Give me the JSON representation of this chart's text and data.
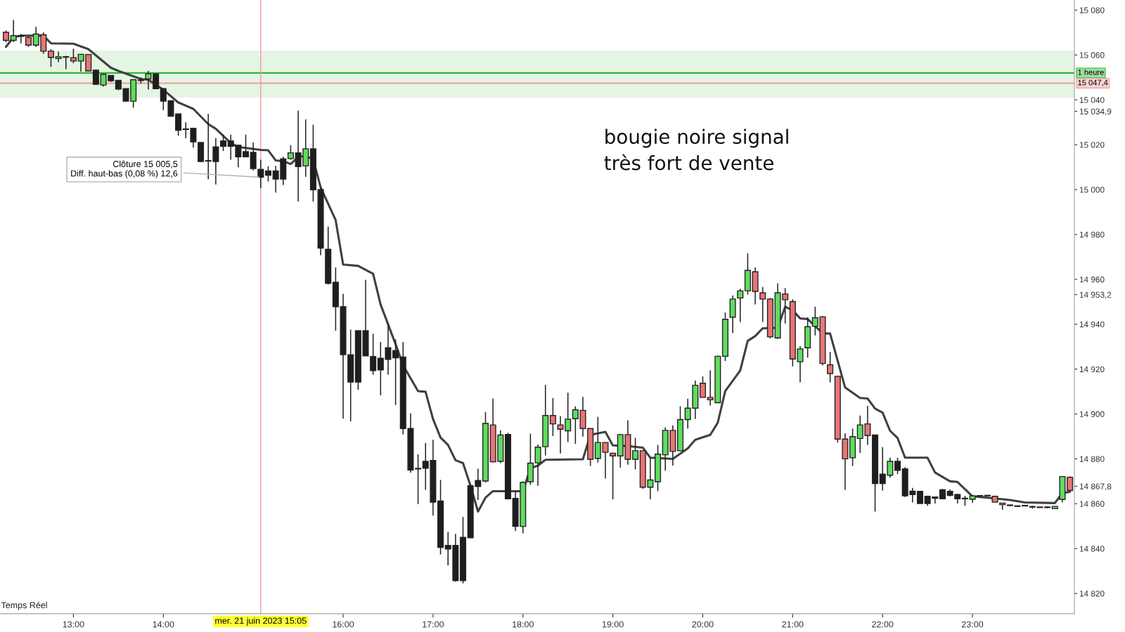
{
  "chart_data": {
    "type": "candlestick",
    "x": [
      "2023-06-21T12:15",
      "2023-06-21T12:20",
      "2023-06-21T12:25",
      "2023-06-21T12:30",
      "2023-06-21T12:35",
      "2023-06-21T12:40",
      "2023-06-21T12:45",
      "2023-06-21T12:50",
      "2023-06-21T12:55",
      "2023-06-21T13:00",
      "2023-06-21T13:05",
      "2023-06-21T13:10",
      "2023-06-21T13:15",
      "2023-06-21T13:20",
      "2023-06-21T13:25",
      "2023-06-21T13:30",
      "2023-06-21T13:35",
      "2023-06-21T13:40",
      "2023-06-21T13:45",
      "2023-06-21T13:50",
      "2023-06-21T13:55",
      "2023-06-21T14:00",
      "2023-06-21T14:05",
      "2023-06-21T14:10",
      "2023-06-21T14:15",
      "2023-06-21T14:20",
      "2023-06-21T14:25",
      "2023-06-21T14:30",
      "2023-06-21T14:35",
      "2023-06-21T14:40",
      "2023-06-21T14:45",
      "2023-06-21T14:50",
      "2023-06-21T14:55",
      "2023-06-21T15:00",
      "2023-06-21T15:05",
      "2023-06-21T15:10",
      "2023-06-21T15:15",
      "2023-06-21T15:20",
      "2023-06-21T15:25",
      "2023-06-21T15:30",
      "2023-06-21T15:35",
      "2023-06-21T15:40",
      "2023-06-21T15:45",
      "2023-06-21T15:50",
      "2023-06-21T15:55",
      "2023-06-21T16:00",
      "2023-06-21T16:05",
      "2023-06-21T16:10",
      "2023-06-21T16:15",
      "2023-06-21T16:20",
      "2023-06-21T16:25",
      "2023-06-21T16:30",
      "2023-06-21T16:35",
      "2023-06-21T16:40",
      "2023-06-21T16:45",
      "2023-06-21T16:50",
      "2023-06-21T16:55",
      "2023-06-21T17:00",
      "2023-06-21T17:05",
      "2023-06-21T17:10",
      "2023-06-21T17:15",
      "2023-06-21T17:20",
      "2023-06-21T17:25",
      "2023-06-21T17:30",
      "2023-06-21T17:35",
      "2023-06-21T17:40",
      "2023-06-21T17:45",
      "2023-06-21T17:50",
      "2023-06-21T17:55",
      "2023-06-21T18:00",
      "2023-06-21T18:05",
      "2023-06-21T18:10",
      "2023-06-21T18:15",
      "2023-06-21T18:20",
      "2023-06-21T18:25",
      "2023-06-21T18:30",
      "2023-06-21T18:35",
      "2023-06-21T18:40",
      "2023-06-21T18:45",
      "2023-06-21T18:50",
      "2023-06-21T18:55",
      "2023-06-21T19:00",
      "2023-06-21T19:05",
      "2023-06-21T19:10",
      "2023-06-21T19:15",
      "2023-06-21T19:20",
      "2023-06-21T19:25",
      "2023-06-21T19:30",
      "2023-06-21T19:35",
      "2023-06-21T19:40",
      "2023-06-21T19:45",
      "2023-06-21T19:50",
      "2023-06-21T19:55",
      "2023-06-21T20:00",
      "2023-06-21T20:05",
      "2023-06-21T20:10",
      "2023-06-21T20:15",
      "2023-06-21T20:20",
      "2023-06-21T20:25",
      "2023-06-21T20:30",
      "2023-06-21T20:35",
      "2023-06-21T20:40",
      "2023-06-21T20:45",
      "2023-06-21T20:50",
      "2023-06-21T20:55",
      "2023-06-21T21:00",
      "2023-06-21T21:05",
      "2023-06-21T21:10",
      "2023-06-21T21:15",
      "2023-06-21T21:20",
      "2023-06-21T21:25",
      "2023-06-21T21:30",
      "2023-06-21T21:35",
      "2023-06-21T21:40",
      "2023-06-21T21:45",
      "2023-06-21T21:50",
      "2023-06-21T21:55",
      "2023-06-21T22:00",
      "2023-06-21T22:05",
      "2023-06-21T22:10",
      "2023-06-21T22:15",
      "2023-06-21T22:20",
      "2023-06-21T22:25",
      "2023-06-21T22:30",
      "2023-06-21T22:35",
      "2023-06-21T22:40",
      "2023-06-21T22:45",
      "2023-06-21T22:50",
      "2023-06-21T22:55",
      "2023-06-21T23:00",
      "2023-06-21T23:05",
      "2023-06-21T23:10",
      "2023-06-21T23:15",
      "2023-06-21T23:20",
      "2023-06-21T23:25",
      "2023-06-21T23:30",
      "2023-06-21T23:35",
      "2023-06-21T23:40",
      "2023-06-21T23:45",
      "2023-06-21T23:50",
      "2023-06-21T23:55",
      "2023-06-22T00:00",
      "2023-06-22T00:05"
    ],
    "ohlc": [
      [
        15070.1,
        15070.9,
        15065.7,
        15066.5
      ],
      [
        15066.5,
        15075.6,
        15065.7,
        15068.6
      ],
      [
        15068.4,
        15069.3,
        15065.2,
        15068.3
      ],
      [
        15067.8,
        15068.3,
        15063.6,
        15064.4
      ],
      [
        15064.4,
        15072.5,
        15063.6,
        15069.3
      ],
      [
        15069.0,
        15070.1,
        15060.5,
        15061.7
      ],
      [
        15061.7,
        15062.6,
        15054.7,
        15058.9
      ],
      [
        15058.4,
        15061.5,
        15056.8,
        15059.2
      ],
      [
        15059.2,
        15059.6,
        15053.7,
        15059.0
      ],
      [
        15058.8,
        15062.8,
        15056.3,
        15057.3
      ],
      [
        15057.3,
        15060.5,
        15052.6,
        15060.3
      ],
      [
        15060.2,
        15060.4,
        15052.8,
        15052.9
      ],
      [
        15053.2,
        15053.6,
        15046.8,
        15046.9
      ],
      [
        15046.6,
        15051.5,
        15045.9,
        15051.4
      ],
      [
        15050.9,
        15051.0,
        15048.0,
        15048.5
      ],
      [
        15048.7,
        15048.8,
        15044.3,
        15044.8
      ],
      [
        15045.0,
        15045.1,
        15039.3,
        15039.4
      ],
      [
        15039.4,
        15049.1,
        15036.5,
        15049.0
      ],
      [
        15048.8,
        15050.0,
        15047.3,
        15048.6
      ],
      [
        15049.3,
        15052.9,
        15044.6,
        15051.6
      ],
      [
        15051.6,
        15051.7,
        15044.8,
        15045.0
      ],
      [
        15045.0,
        15045.1,
        15035.4,
        15039.4
      ],
      [
        15039.6,
        15039.7,
        15032.6,
        15032.7
      ],
      [
        15033.7,
        15033.8,
        15024.0,
        15026.4
      ],
      [
        15026.9,
        15030.0,
        15022.9,
        15026.8
      ],
      [
        15027.3,
        15027.4,
        15018.7,
        15021.3
      ],
      [
        15021.0,
        15021.1,
        15012.4,
        15012.5
      ],
      [
        15012.9,
        15033.7,
        15004.6,
        15012.7
      ],
      [
        15019.0,
        15023.0,
        15002.3,
        15012.5
      ],
      [
        15021.7,
        15024.5,
        15017.2,
        15019.3
      ],
      [
        15021.7,
        15024.5,
        15013.3,
        15019.3
      ],
      [
        15019.8,
        15020.0,
        15009.9,
        15014.6
      ],
      [
        15016.9,
        15024.5,
        15014.4,
        15014.6
      ],
      [
        15016.6,
        15021.0,
        15008.5,
        15009.4
      ],
      [
        15009.0,
        15013.3,
        15000.7,
        15005.5
      ],
      [
        15008.3,
        15010.4,
        15003.6,
        15006.4
      ],
      [
        15008.3,
        15010.6,
        14998.7,
        15004.7
      ],
      [
        15013.7,
        15014.6,
        15002.0,
        15004.7
      ],
      [
        15013.8,
        15019.8,
        15013.3,
        15016.4
      ],
      [
        15016.4,
        15035.2,
        14994.7,
        15010.2
      ],
      [
        15010.6,
        15031.3,
        15005.7,
        15018.2
      ],
      [
        15018.2,
        15028.9,
        14994.7,
        14999.9
      ],
      [
        15000.0,
        15001.0,
        14970.7,
        14973.9
      ],
      [
        14973.4,
        14983.5,
        14957.7,
        14958.2
      ],
      [
        14958.7,
        14965.3,
        14937.1,
        14947.8
      ],
      [
        14947.8,
        14953.5,
        14897.9,
        14926.4
      ],
      [
        14926.4,
        14937.6,
        14896.7,
        14914.2
      ],
      [
        14937.1,
        14937.2,
        14910.8,
        14914.2
      ],
      [
        14937.1,
        14959.8,
        14925.8,
        14925.9
      ],
      [
        14925.6,
        14935.8,
        14917.5,
        14919.3
      ],
      [
        14924.8,
        14932.1,
        14908.3,
        14919.6
      ],
      [
        14929.5,
        14940.0,
        14917.5,
        14924.3
      ],
      [
        14928.3,
        14933.2,
        14904.0,
        14925.0
      ],
      [
        14925.4,
        14932.1,
        14890.9,
        14893.5
      ],
      [
        14893.5,
        14900.3,
        14873.9,
        14875.0
      ],
      [
        14875.7,
        14882.0,
        14859.8,
        14875.5
      ],
      [
        14878.9,
        14887.1,
        14866.2,
        14875.8
      ],
      [
        14879.3,
        14888.5,
        14854.7,
        14860.7
      ],
      [
        14861.2,
        14870.6,
        14837.4,
        14840.5
      ],
      [
        14841.4,
        14847.4,
        14832.5,
        14839.8
      ],
      [
        14841.4,
        14846.6,
        14825.2,
        14825.7
      ],
      [
        14845.0,
        14854.1,
        14824.5,
        14825.7
      ],
      [
        14868.0,
        14868.7,
        14844.7,
        14844.8
      ],
      [
        14870.4,
        14875.6,
        14861.7,
        14867.7
      ],
      [
        14870.1,
        14900.8,
        14869.5,
        14895.8
      ],
      [
        14895.1,
        14906.9,
        14878.4,
        14878.7
      ],
      [
        14878.9,
        14892.7,
        14878.1,
        14890.6
      ],
      [
        14890.9,
        14891.6,
        14862.1,
        14862.2
      ],
      [
        14862.4,
        14865.4,
        14847.8,
        14849.9
      ],
      [
        14849.9,
        14870.0,
        14846.8,
        14869.5
      ],
      [
        14869.8,
        14891.2,
        14868.5,
        14878.1
      ],
      [
        14878.2,
        14886.4,
        14868.0,
        14885.2
      ],
      [
        14885.4,
        14913.0,
        14881.5,
        14899.3
      ],
      [
        14899.3,
        14907.1,
        14890.2,
        14895.6
      ],
      [
        14895.1,
        14899.1,
        14882.4,
        14893.2
      ],
      [
        14892.5,
        14909.5,
        14887.5,
        14897.7
      ],
      [
        14897.9,
        14903.4,
        14886.7,
        14901.9
      ],
      [
        14901.6,
        14907.6,
        14889.9,
        14893.5
      ],
      [
        14893.5,
        14893.6,
        14876.8,
        14879.8
      ],
      [
        14880.2,
        14898.7,
        14878.4,
        14887.3
      ],
      [
        14887.3,
        14887.4,
        14871.2,
        14882.9
      ],
      [
        14882.5,
        14882.6,
        14862.0,
        14881.3
      ],
      [
        14881.3,
        14890.9,
        14876.1,
        14890.8
      ],
      [
        14890.8,
        14897.2,
        14877.4,
        14879.8
      ],
      [
        14879.8,
        14889.4,
        14875.3,
        14883.6
      ],
      [
        14883.6,
        14883.7,
        14866.6,
        14867.4
      ],
      [
        14867.4,
        14880.5,
        14862.0,
        14870.6
      ],
      [
        14869.8,
        14886.2,
        14865.6,
        14882.1
      ],
      [
        14881.8,
        14894.1,
        14874.7,
        14892.7
      ],
      [
        14892.7,
        14894.9,
        14877.0,
        14883.3
      ],
      [
        14883.6,
        14903.4,
        14883.5,
        14897.5
      ],
      [
        14897.5,
        14906.8,
        14893.5,
        14902.6
      ],
      [
        14902.6,
        14914.9,
        14897.7,
        14912.8
      ],
      [
        14913.7,
        14916.7,
        14907.3,
        14907.4
      ],
      [
        14907.4,
        14919.4,
        14903.8,
        14906.3
      ],
      [
        14905.0,
        14926.0,
        14904.9,
        14925.7
      ],
      [
        14925.7,
        14945.2,
        14923.6,
        14942.2
      ],
      [
        14943.1,
        14952.8,
        14936.1,
        14951.2
      ],
      [
        14951.7,
        14955.8,
        14941.0,
        14954.9
      ],
      [
        14954.9,
        14971.6,
        14953.2,
        14964.0
      ],
      [
        14963.4,
        14965.3,
        14948.8,
        14954.6
      ],
      [
        14954.0,
        14956.6,
        14941.0,
        14951.2
      ],
      [
        14951.2,
        14951.7,
        14933.7,
        14934.4
      ],
      [
        14933.9,
        14958.2,
        14933.4,
        14954.0
      ],
      [
        14953.5,
        14956.1,
        14940.3,
        14950.9
      ],
      [
        14950.1,
        14951.1,
        14921.2,
        14924.5
      ],
      [
        14923.3,
        14930.2,
        14914.1,
        14929.0
      ],
      [
        14929.5,
        14943.1,
        14925.1,
        14938.9
      ],
      [
        14939.1,
        14947.8,
        14935.0,
        14942.9
      ],
      [
        14943.3,
        14943.6,
        14921.7,
        14922.5
      ],
      [
        14921.9,
        14927.7,
        14914.1,
        14918.0
      ],
      [
        14916.8,
        14917.0,
        14887.3,
        14888.8
      ],
      [
        14888.8,
        14891.4,
        14866.2,
        14880.0
      ],
      [
        14880.5,
        14893.5,
        14876.8,
        14889.9
      ],
      [
        14889.1,
        14899.3,
        14882.6,
        14895.1
      ],
      [
        14895.6,
        14903.6,
        14886.2,
        14890.4
      ],
      [
        14890.6,
        14890.7,
        14856.5,
        14869.0
      ],
      [
        14873.2,
        14885.2,
        14865.9,
        14869.0
      ],
      [
        14872.7,
        14880.5,
        14871.6,
        14878.9
      ],
      [
        14878.9,
        14880.5,
        14873.2,
        14874.9
      ],
      [
        14875.5,
        14876.3,
        14863.0,
        14863.5
      ],
      [
        14865.6,
        14867.1,
        14860.6,
        14864.1
      ],
      [
        14865.5,
        14865.6,
        14860.0,
        14860.1
      ],
      [
        14863.3,
        14863.5,
        14859.1,
        14860.1
      ],
      [
        14863.0,
        14863.2,
        14860.1,
        14862.4
      ],
      [
        14866.2,
        14866.6,
        14862.0,
        14862.2
      ],
      [
        14865.5,
        14866.4,
        14863.2,
        14863.8
      ],
      [
        14864.1,
        14864.5,
        14860.1,
        14862.2
      ],
      [
        14862.3,
        14863.5,
        14859.1,
        14862.2
      ],
      [
        14862.0,
        14863.8,
        14860.3,
        14863.5
      ],
      [
        14863.5,
        14863.7,
        14863.3,
        14863.4
      ],
      [
        14863.6,
        14863.8,
        14863.3,
        14863.5
      ],
      [
        14863.3,
        14863.4,
        14860.6,
        14860.7
      ],
      [
        14860.3,
        14860.4,
        14857.3,
        14859.6
      ],
      [
        14859.3,
        14859.6,
        14858.9,
        14859.2
      ],
      [
        14858.9,
        14859.0,
        14858.7,
        14858.8
      ],
      [
        14859.1,
        14859.3,
        14858.8,
        14859.0
      ],
      [
        14858.6,
        14859.1,
        14857.8,
        14858.5
      ],
      [
        14858.4,
        14858.5,
        14858.2,
        14858.3
      ],
      [
        14858.4,
        14858.8,
        14858.0,
        14858.3
      ],
      [
        14857.8,
        14858.9,
        14857.7,
        14858.8
      ],
      [
        14861.9,
        14872.2,
        14860.6,
        14872.1
      ],
      [
        14871.8,
        14872.2,
        14865.8,
        14865.9
      ]
    ],
    "colors": [
      "#e87575",
      "#5fdc5f",
      "#1e1e1e",
      "#e87575",
      "#5fdc5f",
      "#e87575",
      "#e87575",
      "#5fdc5f",
      "#1e1e1e",
      "#e87575",
      "#5fdc5f",
      "#e87575",
      "#1e1e1e",
      "#5fdc5f",
      "#1e1e1e",
      "#1e1e1e",
      "#1e1e1e",
      "#5fdc5f",
      "#1e1e1e",
      "#5fdc5f",
      "#1e1e1e",
      "#1e1e1e",
      "#1e1e1e",
      "#1e1e1e",
      "#1e1e1e",
      "#1e1e1e",
      "#1e1e1e",
      "#1e1e1e",
      "#1e1e1e",
      "#1e1e1e",
      "#1e1e1e",
      "#1e1e1e",
      "#1e1e1e",
      "#1e1e1e",
      "#1e1e1e",
      "#1e1e1e",
      "#1e1e1e",
      "#1e1e1e",
      "#5fdc5f",
      "#1e1e1e",
      "#5fdc5f",
      "#1e1e1e",
      "#1e1e1e",
      "#1e1e1e",
      "#1e1e1e",
      "#1e1e1e",
      "#1e1e1e",
      "#1e1e1e",
      "#1e1e1e",
      "#1e1e1e",
      "#1e1e1e",
      "#1e1e1e",
      "#1e1e1e",
      "#1e1e1e",
      "#1e1e1e",
      "#1e1e1e",
      "#1e1e1e",
      "#1e1e1e",
      "#1e1e1e",
      "#1e1e1e",
      "#1e1e1e",
      "#1e1e1e",
      "#1e1e1e",
      "#1e1e1e",
      "#5fdc5f",
      "#e87575",
      "#5fdc5f",
      "#1e1e1e",
      "#1e1e1e",
      "#5fdc5f",
      "#5fdc5f",
      "#5fdc5f",
      "#5fdc5f",
      "#e87575",
      "#e87575",
      "#5fdc5f",
      "#5fdc5f",
      "#e87575",
      "#e87575",
      "#5fdc5f",
      "#e87575",
      "#e87575",
      "#5fdc5f",
      "#e87575",
      "#5fdc5f",
      "#e87575",
      "#5fdc5f",
      "#5fdc5f",
      "#5fdc5f",
      "#e87575",
      "#5fdc5f",
      "#5fdc5f",
      "#5fdc5f",
      "#e87575",
      "#e87575",
      "#5fdc5f",
      "#5fdc5f",
      "#5fdc5f",
      "#5fdc5f",
      "#5fdc5f",
      "#e87575",
      "#e87575",
      "#e87575",
      "#5fdc5f",
      "#e87575",
      "#e87575",
      "#5fdc5f",
      "#5fdc5f",
      "#5fdc5f",
      "#e87575",
      "#e87575",
      "#e87575",
      "#e87575",
      "#5fdc5f",
      "#5fdc5f",
      "#e87575",
      "#1e1e1e",
      "#1e1e1e",
      "#5fdc5f",
      "#1e1e1e",
      "#1e1e1e",
      "#1e1e1e",
      "#1e1e1e",
      "#1e1e1e",
      "#1e1e1e",
      "#1e1e1e",
      "#1e1e1e",
      "#1e1e1e",
      "#1e1e1e",
      "#5fdc5f",
      "#1e1e1e",
      "#1e1e1e",
      "#e87575",
      "#e87575",
      "#1e1e1e",
      "#1e1e1e",
      "#1e1e1e",
      "#1e1e1e",
      "#1e1e1e",
      "#1e1e1e",
      "#5fdc5f",
      "#5fdc5f",
      "#e87575"
    ],
    "series": [
      {
        "type": "line",
        "color": "#404040",
        "x": [
          "2023-06-21T12:15",
          "2023-06-21T12:20",
          "2023-06-21T12:25",
          "2023-06-21T12:40",
          "2023-06-21T12:45",
          "2023-06-21T13:00",
          "2023-06-21T13:10",
          "2023-06-21T13:25",
          "2023-06-21T13:30",
          "2023-06-21T13:45",
          "2023-06-21T13:50",
          "2023-06-21T14:00",
          "2023-06-21T14:10",
          "2023-06-21T14:20",
          "2023-06-21T14:30",
          "2023-06-21T14:35",
          "2023-06-21T14:45",
          "2023-06-21T14:50",
          "2023-06-21T15:05",
          "2023-06-21T15:10",
          "2023-06-21T15:15",
          "2023-06-21T15:20",
          "2023-06-21T15:25",
          "2023-06-21T15:30",
          "2023-06-21T15:35",
          "2023-06-21T15:40",
          "2023-06-21T15:45",
          "2023-06-21T15:55",
          "2023-06-21T16:00",
          "2023-06-21T16:10",
          "2023-06-21T16:20",
          "2023-06-21T16:25",
          "2023-06-21T16:35",
          "2023-06-21T16:40",
          "2023-06-21T16:50",
          "2023-06-21T16:55",
          "2023-06-21T17:00",
          "2023-06-21T17:05",
          "2023-06-21T17:10",
          "2023-06-21T17:15",
          "2023-06-21T17:20",
          "2023-06-21T17:25",
          "2023-06-21T17:30",
          "2023-06-21T17:35",
          "2023-06-21T17:40",
          "2023-06-21T18:00",
          "2023-06-21T18:05",
          "2023-06-21T18:10",
          "2023-06-21T18:15",
          "2023-06-21T18:40",
          "2023-06-21T18:45",
          "2023-06-21T18:55",
          "2023-06-21T19:00",
          "2023-06-21T19:10",
          "2023-06-21T19:20",
          "2023-06-21T19:25",
          "2023-06-21T19:40",
          "2023-06-21T19:50",
          "2023-06-21T19:55",
          "2023-06-21T20:05",
          "2023-06-21T20:10",
          "2023-06-21T20:15",
          "2023-06-21T20:25",
          "2023-06-21T20:30",
          "2023-06-21T20:35",
          "2023-06-21T20:40",
          "2023-06-21T20:50",
          "2023-06-21T20:55",
          "2023-06-21T21:00",
          "2023-06-21T21:05",
          "2023-06-21T21:10",
          "2023-06-21T21:20",
          "2023-06-21T21:25",
          "2023-06-21T21:35",
          "2023-06-21T21:45",
          "2023-06-21T21:50",
          "2023-06-21T21:55",
          "2023-06-21T22:00",
          "2023-06-21T22:05",
          "2023-06-21T22:10",
          "2023-06-21T22:15",
          "2023-06-21T22:30",
          "2023-06-21T22:35",
          "2023-06-21T22:45",
          "2023-06-21T22:50",
          "2023-06-21T23:00",
          "2023-06-21T23:10",
          "2023-06-21T23:25",
          "2023-06-21T23:35",
          "2023-06-21T23:55",
          "2023-06-22T00:00",
          "2023-06-22T00:05"
        ],
        "values": [
          15063.6,
          15068.0,
          15068.6,
          15068.6,
          15065.2,
          15065.0,
          15062.6,
          15054.3,
          15052.9,
          15049.3,
          15049.0,
          15044.5,
          15038.8,
          15036.0,
          15029.2,
          15027.1,
          15020.8,
          15019.0,
          15017.7,
          15017.5,
          15013.0,
          15012.7,
          15011.4,
          15014.6,
          15015.0,
          15013.5,
          15001.0,
          14986.4,
          14966.6,
          14966.0,
          14962.5,
          14948.8,
          14931.1,
          14921.7,
          14910.2,
          14909.9,
          14897.7,
          14889.5,
          14886.2,
          14879.4,
          14878.1,
          14868.0,
          14856.5,
          14862.7,
          14865.6,
          14865.6,
          14875.8,
          14877.0,
          14879.6,
          14879.8,
          14890.7,
          14892.0,
          14886.0,
          14885.7,
          14885.0,
          14880.5,
          14880.0,
          14884.7,
          14888.5,
          14890.7,
          14896.1,
          14910.2,
          14919.4,
          14932.6,
          14934.7,
          14938.2,
          14938.4,
          14947.8,
          14946.2,
          14942.6,
          14942.3,
          14936.0,
          14935.8,
          14911.8,
          14907.1,
          14906.9,
          14902.4,
          14900.6,
          14892.5,
          14889.3,
          14880.5,
          14880.5,
          14873.9,
          14870.0,
          14869.7,
          14863.3,
          14862.7,
          14861.7,
          14860.6,
          14860.3,
          14864.8,
          14865.3
        ]
      }
    ],
    "xlim": [
      "2023-06-21T12:11",
      "2023-06-22T00:08"
    ],
    "xticks": [
      {
        "value": "2023-06-21T13:00",
        "label": "13:00"
      },
      {
        "value": "2023-06-21T14:00",
        "label": "14:00"
      },
      {
        "value": "2023-06-21T16:00",
        "label": "16:00"
      },
      {
        "value": "2023-06-21T17:00",
        "label": "17:00"
      },
      {
        "value": "2023-06-21T18:00",
        "label": "18:00"
      },
      {
        "value": "2023-06-21T19:00",
        "label": "19:00"
      },
      {
        "value": "2023-06-21T20:00",
        "label": "20:00"
      },
      {
        "value": "2023-06-21T21:00",
        "label": "21:00"
      },
      {
        "value": "2023-06-21T22:00",
        "label": "22:00"
      },
      {
        "value": "2023-06-21T23:00",
        "label": "23:00"
      }
    ],
    "ylim": [
      14811,
      15084.5
    ],
    "yticks": [
      {
        "value": 14820,
        "label": "14 820"
      },
      {
        "value": 14840,
        "label": "14 840"
      },
      {
        "value": 14860,
        "label": "14 860"
      },
      {
        "value": 14867.8,
        "label": "14 867,8"
      },
      {
        "value": 14880,
        "label": "14 880"
      },
      {
        "value": 14900,
        "label": "14 900"
      },
      {
        "value": 14920,
        "label": "14 920"
      },
      {
        "value": 14940,
        "label": "14 940"
      },
      {
        "value": 14953.2,
        "label": "14 953,2"
      },
      {
        "value": 14960,
        "label": "14 960"
      },
      {
        "value": 14980,
        "label": "14 980"
      },
      {
        "value": 15000,
        "label": "15 000"
      },
      {
        "value": 15020,
        "label": "15 020"
      },
      {
        "value": 15034.9,
        "label": "15 034,9"
      },
      {
        "value": 15040,
        "label": "15 040"
      },
      {
        "value": 15060,
        "label": "15 060"
      },
      {
        "value": 15080,
        "label": "15 080"
      }
    ],
    "bands": [
      {
        "axis": "y",
        "from": 15041,
        "to": 15062,
        "color": "#e4f5e4"
      }
    ],
    "ref_lines": [
      {
        "axis": "y",
        "value": 15052,
        "label": "1 heure",
        "color": "#2eb82e"
      },
      {
        "axis": "y",
        "value": 15047.4,
        "label": "15 047,4",
        "color": "#f29a9a"
      },
      {
        "axis": "x",
        "value": "2023-06-21T15:05",
        "label": "mer. 21 juin 2023 15:05",
        "color": "#f29a9a"
      }
    ],
    "annotations": [
      "bougie noire signal\ntrès fort de vente",
      {
        "text": "Clôture 15 005,5\nDiff. haut-bas (0,08 %) 12,6",
        "x": "2023-06-21T15:05",
        "y": 15005.5
      },
      "Temps Réel"
    ],
    "grid": false,
    "legend": false
  }
}
